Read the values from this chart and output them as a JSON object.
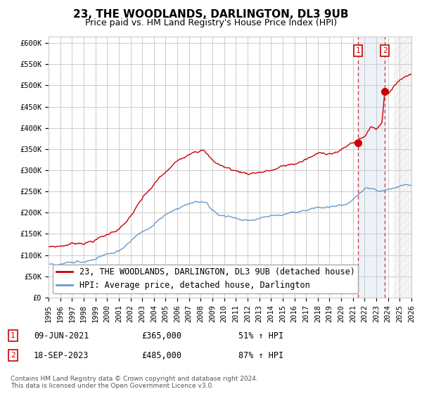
{
  "title": "23, THE WOODLANDS, DARLINGTON, DL3 9UB",
  "subtitle": "Price paid vs. HM Land Registry's House Price Index (HPI)",
  "ytick_values": [
    0,
    50000,
    100000,
    150000,
    200000,
    250000,
    300000,
    350000,
    400000,
    450000,
    500000,
    550000,
    600000
  ],
  "ylim": [
    0,
    615000
  ],
  "xlim_years": [
    1995,
    2026
  ],
  "xtick_years": [
    1995,
    1996,
    1997,
    1998,
    1999,
    2000,
    2001,
    2002,
    2003,
    2004,
    2005,
    2006,
    2007,
    2008,
    2009,
    2010,
    2011,
    2012,
    2013,
    2014,
    2015,
    2016,
    2017,
    2018,
    2019,
    2020,
    2021,
    2022,
    2023,
    2024,
    2025,
    2026
  ],
  "line1_color": "#cc0000",
  "line2_color": "#6699cc",
  "line1_label": "23, THE WOODLANDS, DARLINGTON, DL3 9UB (detached house)",
  "line2_label": "HPI: Average price, detached house, Darlington",
  "sale1_date": "09-JUN-2021",
  "sale1_price": 365000,
  "sale1_pct": "51%",
  "sale2_date": "18-SEP-2023",
  "sale2_price": 485000,
  "sale2_pct": "87%",
  "sale1_year": 2021.44,
  "sale2_year": 2023.72,
  "footer": "Contains HM Land Registry data © Crown copyright and database right 2024.\nThis data is licensed under the Open Government Licence v3.0.",
  "bg_color": "#ffffff",
  "grid_color": "#cccccc",
  "title_fontsize": 11,
  "subtitle_fontsize": 9,
  "tick_fontsize": 7.5,
  "legend_fontsize": 8.5,
  "annotation_fontsize": 8.5,
  "hatch_start_year": 2024.5
}
